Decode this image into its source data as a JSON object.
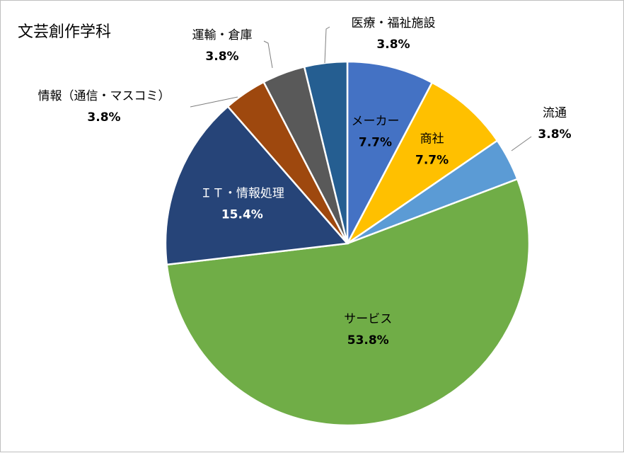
{
  "chart_data": {
    "type": "pie",
    "title": "文芸創作学科",
    "slices": [
      {
        "label": "メーカー",
        "value": 7.7,
        "display": "7.7%",
        "color": "#4472C4"
      },
      {
        "label": "商社",
        "value": 7.7,
        "display": "7.7%",
        "color": "#FFC000"
      },
      {
        "label": "流通",
        "value": 3.8,
        "display": "3.8%",
        "color": "#5B9BD5"
      },
      {
        "label": "サービス",
        "value": 53.8,
        "display": "53.8%",
        "color": "#70AD47"
      },
      {
        "label": "ＩＴ・情報処理",
        "value": 15.4,
        "display": "15.4%",
        "color": "#264478"
      },
      {
        "label": "情報（通信・マスコミ）",
        "value": 3.8,
        "display": "3.8%",
        "color": "#9E480E"
      },
      {
        "label": "運輸・倉庫",
        "value": 3.8,
        "display": "3.8%",
        "color": "#595959"
      },
      {
        "label": "医療・福祉施設",
        "value": 3.8,
        "display": "3.8%",
        "color": "#255E91"
      }
    ]
  }
}
